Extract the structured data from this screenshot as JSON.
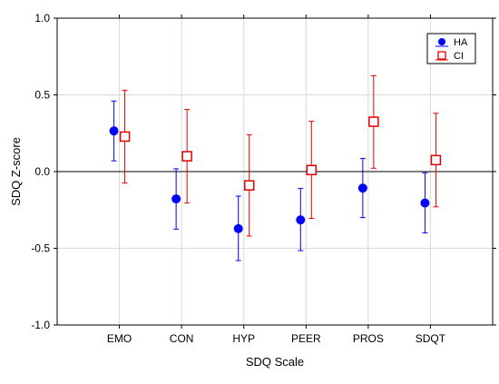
{
  "chart_data": {
    "type": "scatter",
    "xlabel": "SDQ Scale",
    "ylabel": "SDQ Z-score",
    "categories": [
      "EMO",
      "CON",
      "HYP",
      "PEER",
      "PROS",
      "SDQT"
    ],
    "ylim": [
      -1.0,
      1.0
    ],
    "yticks": [
      1.0,
      0.5,
      0.0,
      -0.5,
      -1.0
    ],
    "ytick_labels": [
      "1.0",
      "0.5",
      "0.0",
      "-0.5",
      "-1.0"
    ],
    "grid": true,
    "legend_position": "top-right",
    "reference_line": 0.0,
    "series": [
      {
        "name": "HA",
        "color": "#0000ff",
        "marker": "circle",
        "values": [
          0.265,
          -0.178,
          -0.372,
          -0.315,
          -0.108,
          -0.205
        ],
        "lower": [
          0.07,
          -0.375,
          -0.58,
          -0.515,
          -0.3,
          -0.4
        ],
        "upper": [
          0.46,
          0.018,
          -0.16,
          -0.11,
          0.085,
          -0.008
        ]
      },
      {
        "name": "CI",
        "color": "#e00000",
        "marker": "square-open",
        "values": [
          0.228,
          0.1,
          -0.09,
          0.01,
          0.325,
          0.075
        ],
        "lower": [
          -0.075,
          -0.205,
          -0.42,
          -0.305,
          0.022,
          -0.23
        ],
        "upper": [
          0.53,
          0.405,
          0.24,
          0.328,
          0.625,
          0.38
        ]
      }
    ]
  }
}
